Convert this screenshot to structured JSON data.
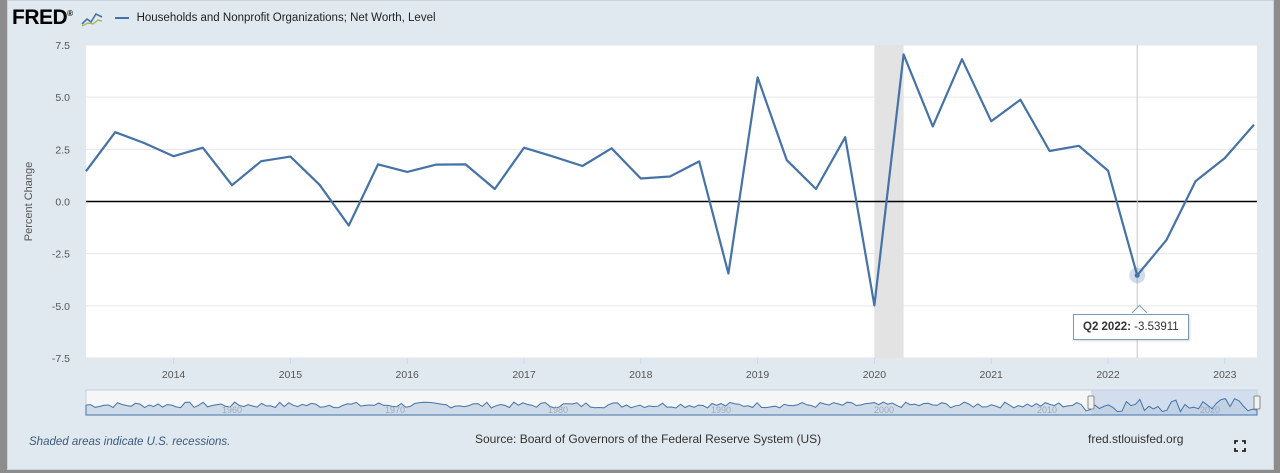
{
  "header": {
    "logo_text": "FRED",
    "logo_mark": "®",
    "series_label": "Households and Nonprofit Organizations; Net Worth, Level",
    "series_color": "#4572a7"
  },
  "tooltip": {
    "period": "Q2 2022:",
    "value": "-3.53911"
  },
  "footer": {
    "recession_note": "Shaded areas indicate U.S. recessions.",
    "source": "Source: Board of Governors of the Federal Reserve System (US)",
    "url": "fred.stlouisfed.org"
  },
  "navigator": {
    "tick_labels": [
      "1960",
      "1970",
      "1980",
      "1990",
      "2000",
      "2010",
      "2020"
    ]
  },
  "chart_data": {
    "type": "line",
    "ylabel": "Percent Change",
    "ylim": [
      -7.5,
      7.5
    ],
    "yticks": [
      "7.5",
      "5.0",
      "2.5",
      "0.0",
      "-2.5",
      "-5.0",
      "-7.5"
    ],
    "xticks": [
      "2014",
      "2015",
      "2016",
      "2017",
      "2018",
      "2019",
      "2020",
      "2021",
      "2022",
      "2023"
    ],
    "zero_line": true,
    "recession": [
      "2020 Q1",
      "2020 Q2"
    ],
    "highlight": {
      "x": "2022 Q2",
      "y": -3.53911
    },
    "series": [
      {
        "x": [
          "2013 Q2",
          "2013 Q3",
          "2013 Q4",
          "2014 Q1",
          "2014 Q2",
          "2014 Q3",
          "2014 Q4",
          "2015 Q1",
          "2015 Q2",
          "2015 Q3",
          "2015 Q4",
          "2016 Q1",
          "2016 Q2",
          "2016 Q3",
          "2016 Q4",
          "2017 Q1",
          "2017 Q2",
          "2017 Q3",
          "2017 Q4",
          "2018 Q1",
          "2018 Q2",
          "2018 Q3",
          "2018 Q4",
          "2019 Q1",
          "2019 Q2",
          "2019 Q3",
          "2019 Q4",
          "2020 Q1",
          "2020 Q2",
          "2020 Q3",
          "2020 Q4",
          "2021 Q1",
          "2021 Q2",
          "2021 Q3",
          "2021 Q4",
          "2022 Q1",
          "2022 Q2",
          "2022 Q3",
          "2022 Q4",
          "2023 Q1",
          "2023 Q2"
        ],
        "values": [
          1.45,
          3.32,
          2.8,
          2.17,
          2.58,
          0.78,
          1.93,
          2.15,
          0.8,
          -1.15,
          1.78,
          1.42,
          1.77,
          1.78,
          0.6,
          2.58,
          2.15,
          1.7,
          2.55,
          1.1,
          1.2,
          1.92,
          -3.45,
          5.95,
          1.98,
          0.6,
          3.08,
          -4.98,
          7.05,
          3.6,
          6.82,
          3.85,
          4.88,
          2.42,
          2.67,
          1.48,
          -3.53911,
          -1.85,
          0.98,
          2.08,
          3.68
        ]
      }
    ]
  }
}
